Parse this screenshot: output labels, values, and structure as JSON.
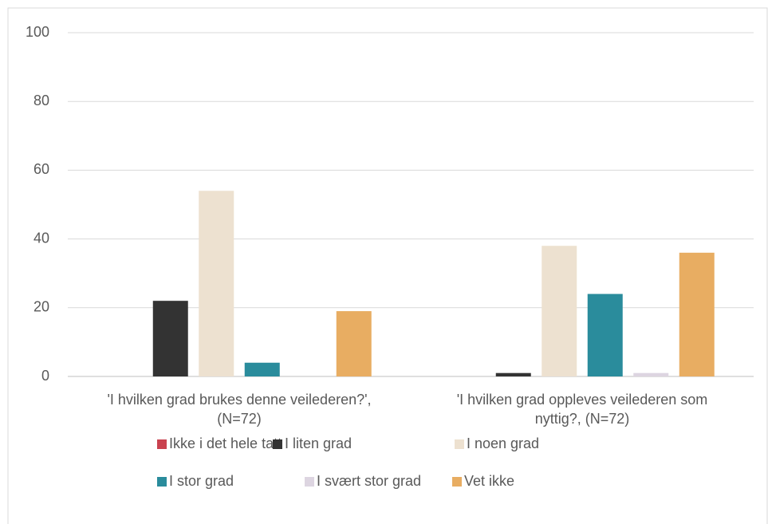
{
  "chart_data": {
    "type": "bar",
    "categories": [
      "'I hvilken grad brukes denne veilederen?', (N=72)",
      "'I hvilken grad oppleves veilederen som nyttig?, (N=72)"
    ],
    "series": [
      {
        "name": "Ikke i det hele tatt",
        "color": "#c9424f",
        "values": [
          0,
          0
        ]
      },
      {
        "name": "I liten grad",
        "color": "#333333",
        "values": [
          22,
          1
        ]
      },
      {
        "name": "I noen grad",
        "color": "#ede1d0",
        "values": [
          54,
          38
        ]
      },
      {
        "name": "I stor grad",
        "color": "#2a8c9c",
        "values": [
          4,
          24
        ]
      },
      {
        "name": "I svært stor grad",
        "color": "#ddd5e1",
        "values": [
          0,
          1
        ]
      },
      {
        "name": "Vet ikke",
        "color": "#e8ad62",
        "values": [
          19,
          36
        ]
      }
    ],
    "ylim": [
      0,
      100
    ],
    "yticks": [
      0,
      20,
      40,
      60,
      80,
      100
    ],
    "grid": true
  }
}
